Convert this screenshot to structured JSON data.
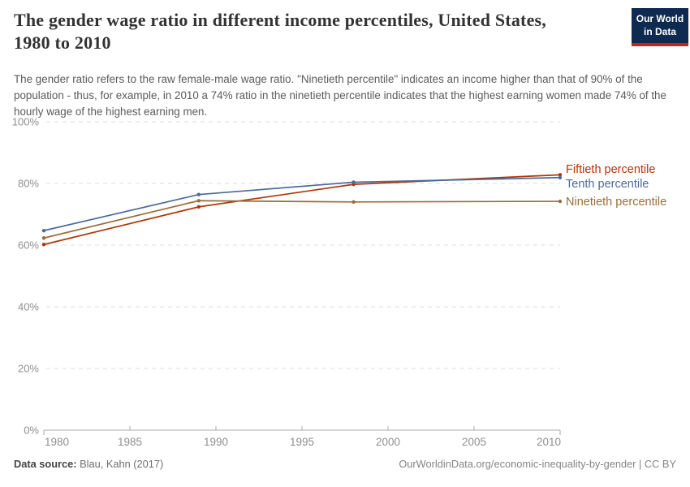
{
  "logo": {
    "line1": "Our World",
    "line2": "in Data",
    "bg_color": "#0E2A51",
    "accent_color": "#C0271C"
  },
  "header": {
    "title_line1": "The gender wage ratio in different income percentiles, United States,",
    "title_line2": "1980 to 2010",
    "subtitle": "The gender ratio refers to the raw female-male wage ratio. \"Ninetieth percentile\" indicates an income higher than that of 90% of the population - thus, for example, in 2010 a 74% ratio in the ninetieth percentile indicates that the highest earning women made 74% of the hourly wage of the highest earning men."
  },
  "chart_data": {
    "type": "line",
    "title": "The gender wage ratio in different income percentiles, United States, 1980 to 2010",
    "x": [
      1980,
      1989,
      1998,
      2010
    ],
    "series": [
      {
        "name": "Fiftieth percentile",
        "color": "#B13507",
        "values": [
          60.2,
          72.4,
          79.7,
          82.8
        ]
      },
      {
        "name": "Tenth percentile",
        "color": "#4C6A9C",
        "values": [
          64.7,
          76.4,
          80.4,
          81.9
        ]
      },
      {
        "name": "Ninetieth percentile",
        "color": "#996D39",
        "values": [
          62.3,
          74.4,
          74.0,
          74.2
        ]
      }
    ],
    "xlabel": "",
    "ylabel": "",
    "xlim": [
      1980,
      2010
    ],
    "ylim": [
      0,
      100
    ],
    "xticks": [
      1980,
      1985,
      1990,
      1995,
      2000,
      2005,
      2010
    ],
    "yticks": [
      0,
      20,
      40,
      60,
      80,
      100
    ],
    "ytick_suffix": "%",
    "grid": "horizontal-dashed",
    "grid_color": "#dcdcdc",
    "axis_color": "#a8a8a8",
    "tick_label_color": "#8f8f8f",
    "legend_position": "right-of-line-ends"
  },
  "footer": {
    "source_label": "Data source:",
    "source_value": "Blau, Kahn (2017)",
    "credit": "OurWorldinData.org/economic-inequality-by-gender | CC BY"
  }
}
